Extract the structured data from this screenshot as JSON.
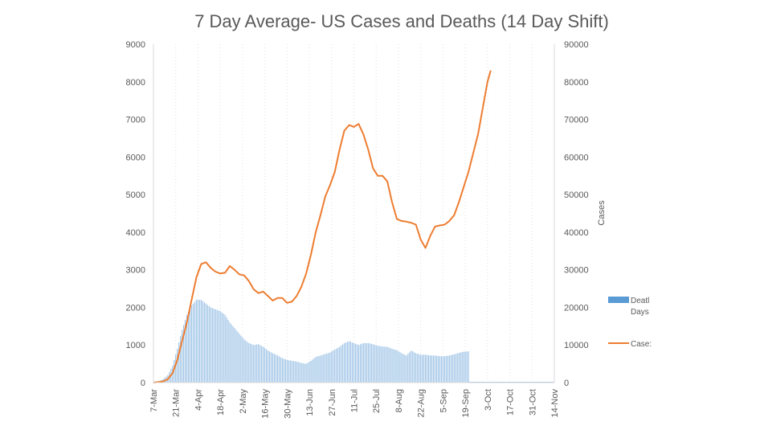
{
  "chart_data": {
    "type": "bar",
    "title": "7 Day Average- US Cases and Deaths (14 Day Shift)",
    "x_tick_labels": [
      "7-Mar",
      "21-Mar",
      "4-Apr",
      "18-Apr",
      "2-May",
      "16-May",
      "30-May",
      "13-Jun",
      "27-Jun",
      "11-Jul",
      "25-Jul",
      "8-Aug",
      "22-Aug",
      "5-Sep",
      "19-Sep",
      "3-Oct",
      "17-Oct",
      "31-Oct",
      "14-Nov"
    ],
    "x_day_range": [
      0,
      252
    ],
    "y_left": {
      "ticks": [
        0,
        1000,
        2000,
        3000,
        4000,
        5000,
        6000,
        7000,
        8000,
        9000
      ],
      "range": [
        0,
        9000
      ]
    },
    "y_right": {
      "label": "Cases",
      "ticks": [
        0,
        10000,
        20000,
        30000,
        40000,
        50000,
        60000,
        70000,
        80000,
        90000
      ],
      "range": [
        0,
        90000
      ]
    },
    "legend": [
      {
        "lines": [
          "Deatl",
          "Days"
        ],
        "kind": "bar",
        "color": "#5b9bd5"
      },
      {
        "lines": [
          "Case:"
        ],
        "kind": "line",
        "color": "#ed7d31"
      }
    ],
    "series": [
      {
        "kind": "bar",
        "axis": "left",
        "color": "#9dc3e6",
        "points": [
          [
            0,
            10
          ],
          [
            3,
            30
          ],
          [
            6,
            90
          ],
          [
            9,
            200
          ],
          [
            12,
            450
          ],
          [
            15,
            900
          ],
          [
            18,
            1400
          ],
          [
            21,
            1800
          ],
          [
            24,
            2050
          ],
          [
            27,
            2200
          ],
          [
            30,
            2200
          ],
          [
            33,
            2100
          ],
          [
            36,
            2000
          ],
          [
            39,
            1950
          ],
          [
            42,
            1900
          ],
          [
            45,
            1800
          ],
          [
            48,
            1600
          ],
          [
            51,
            1450
          ],
          [
            54,
            1300
          ],
          [
            57,
            1150
          ],
          [
            60,
            1050
          ],
          [
            63,
            1000
          ],
          [
            66,
            1020
          ],
          [
            69,
            950
          ],
          [
            72,
            850
          ],
          [
            75,
            780
          ],
          [
            78,
            720
          ],
          [
            81,
            650
          ],
          [
            84,
            600
          ],
          [
            87,
            580
          ],
          [
            90,
            560
          ],
          [
            93,
            520
          ],
          [
            96,
            500
          ],
          [
            99,
            580
          ],
          [
            102,
            680
          ],
          [
            105,
            720
          ],
          [
            108,
            760
          ],
          [
            111,
            800
          ],
          [
            114,
            880
          ],
          [
            117,
            950
          ],
          [
            120,
            1050
          ],
          [
            123,
            1100
          ],
          [
            126,
            1050
          ],
          [
            129,
            1000
          ],
          [
            132,
            1050
          ],
          [
            135,
            1050
          ],
          [
            138,
            1020
          ],
          [
            141,
            980
          ],
          [
            144,
            960
          ],
          [
            147,
            950
          ],
          [
            150,
            900
          ],
          [
            153,
            860
          ],
          [
            156,
            780
          ],
          [
            159,
            720
          ],
          [
            162,
            850
          ],
          [
            165,
            780
          ],
          [
            168,
            740
          ],
          [
            171,
            740
          ],
          [
            174,
            720
          ],
          [
            177,
            720
          ],
          [
            180,
            700
          ],
          [
            183,
            700
          ],
          [
            186,
            720
          ],
          [
            189,
            750
          ],
          [
            192,
            790
          ],
          [
            195,
            820
          ],
          [
            198,
            830
          ]
        ]
      },
      {
        "kind": "line",
        "axis": "right",
        "color": "#ed7d31",
        "points": [
          [
            0,
            0
          ],
          [
            6,
            300
          ],
          [
            9,
            900
          ],
          [
            12,
            2500
          ],
          [
            15,
            6000
          ],
          [
            18,
            11000
          ],
          [
            21,
            16000
          ],
          [
            24,
            22000
          ],
          [
            27,
            28000
          ],
          [
            30,
            31500
          ],
          [
            33,
            32000
          ],
          [
            36,
            30500
          ],
          [
            39,
            29500
          ],
          [
            42,
            29000
          ],
          [
            45,
            29200
          ],
          [
            48,
            31000
          ],
          [
            51,
            30000
          ],
          [
            54,
            28800
          ],
          [
            57,
            28500
          ],
          [
            60,
            27000
          ],
          [
            63,
            24800
          ],
          [
            66,
            23800
          ],
          [
            69,
            24200
          ],
          [
            72,
            23000
          ],
          [
            75,
            21800
          ],
          [
            78,
            22500
          ],
          [
            81,
            22500
          ],
          [
            84,
            21200
          ],
          [
            87,
            21500
          ],
          [
            90,
            23000
          ],
          [
            93,
            25500
          ],
          [
            96,
            29000
          ],
          [
            99,
            34000
          ],
          [
            102,
            40000
          ],
          [
            105,
            44500
          ],
          [
            108,
            49500
          ],
          [
            111,
            52500
          ],
          [
            114,
            56000
          ],
          [
            117,
            62000
          ],
          [
            120,
            67000
          ],
          [
            123,
            68500
          ],
          [
            126,
            68000
          ],
          [
            129,
            68800
          ],
          [
            132,
            66000
          ],
          [
            135,
            62000
          ],
          [
            138,
            57000
          ],
          [
            141,
            55000
          ],
          [
            144,
            55000
          ],
          [
            147,
            53500
          ],
          [
            150,
            48000
          ],
          [
            153,
            43500
          ],
          [
            156,
            43000
          ],
          [
            159,
            42800
          ],
          [
            162,
            42500
          ],
          [
            165,
            42000
          ],
          [
            168,
            38000
          ],
          [
            171,
            35800
          ],
          [
            174,
            39000
          ],
          [
            177,
            41500
          ],
          [
            180,
            41800
          ],
          [
            183,
            42000
          ],
          [
            186,
            43000
          ],
          [
            189,
            44500
          ],
          [
            192,
            48000
          ],
          [
            195,
            52000
          ],
          [
            198,
            56000
          ],
          [
            201,
            61000
          ],
          [
            204,
            66000
          ],
          [
            207,
            73000
          ],
          [
            210,
            80000
          ],
          [
            212,
            83000
          ]
        ]
      }
    ]
  }
}
